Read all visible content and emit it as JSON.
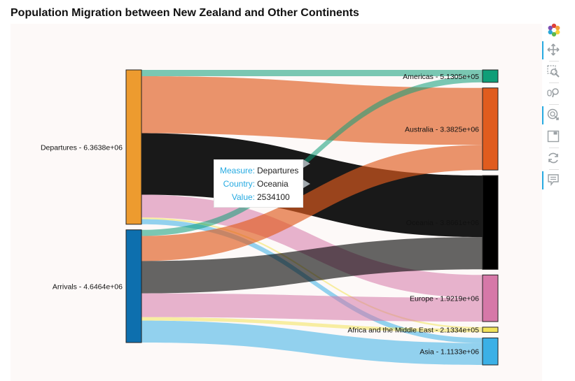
{
  "title": "Population Migration between New Zealand and Other Continents",
  "tooltip": {
    "measure_key": "Measure:",
    "measure_value": "Departures",
    "country_key": "Country:",
    "country_value": "Oceania",
    "value_key": "Value:",
    "value_value": "2534100"
  },
  "toolbar": [
    {
      "name": "bokeh-logo-icon",
      "interactable": false
    },
    {
      "name": "pan-tool-icon",
      "interactable": true,
      "active": true
    },
    {
      "name": "box-zoom-tool-icon",
      "interactable": true
    },
    {
      "name": "wheel-zoom-tool-icon",
      "interactable": true
    },
    {
      "name": "hover-tool-icon",
      "interactable": true,
      "active": true
    },
    {
      "name": "save-tool-icon",
      "interactable": true
    },
    {
      "name": "reset-tool-icon",
      "interactable": true
    },
    {
      "name": "hover-inspect-tool-icon",
      "interactable": true,
      "active": true
    }
  ],
  "chart_data": {
    "type": "sankey",
    "title": "Population Migration between New Zealand and Other Continents",
    "sources": [
      {
        "name": "Departures",
        "label": "Departures - 6.3638e+06",
        "color": "#ed9b2f"
      },
      {
        "name": "Arrivals",
        "label": "Arrivals - 4.6464e+06",
        "color": "#0d6fae"
      }
    ],
    "targets": [
      {
        "name": "Americas",
        "label": "Americas - 5.1305e+05",
        "color": "#0f9e78"
      },
      {
        "name": "Australia",
        "label": "Australia - 3.3825e+06",
        "color": "#e05c1e"
      },
      {
        "name": "Oceania",
        "label": "Oceania - 3.8661e+06",
        "color": "#000000"
      },
      {
        "name": "Europe",
        "label": "Europe - 1.9219e+06",
        "color": "#d678a8"
      },
      {
        "name": "Africa and the Middle East",
        "label": "Africa and the Middle East - 2.1334e+05",
        "color": "#f2e35a"
      },
      {
        "name": "Asia",
        "label": "Asia - 1.1133e+06",
        "color": "#3bb0e6"
      }
    ],
    "links": [
      {
        "source": "Departures",
        "target": "Americas",
        "value": 260000
      },
      {
        "source": "Departures",
        "target": "Australia",
        "value": 2350000
      },
      {
        "source": "Departures",
        "target": "Oceania",
        "value": 2534100
      },
      {
        "source": "Departures",
        "target": "Europe",
        "value": 940000
      },
      {
        "source": "Departures",
        "target": "Africa and the Middle East",
        "value": 70000
      },
      {
        "source": "Departures",
        "target": "Asia",
        "value": 209700
      },
      {
        "source": "Arrivals",
        "target": "Americas",
        "value": 253050
      },
      {
        "source": "Arrivals",
        "target": "Australia",
        "value": 1032500
      },
      {
        "source": "Arrivals",
        "target": "Oceania",
        "value": 1332000
      },
      {
        "source": "Arrivals",
        "target": "Europe",
        "value": 981900
      },
      {
        "source": "Arrivals",
        "target": "Africa and the Middle East",
        "value": 143340
      },
      {
        "source": "Arrivals",
        "target": "Asia",
        "value": 903600
      }
    ]
  }
}
